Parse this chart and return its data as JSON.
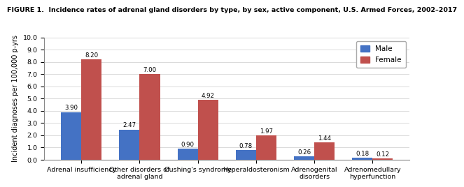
{
  "title": "FIGURE 1.  Incidence rates of adrenal gland disorders by type, by sex, active component, U.S. Armed Forces, 2002–2017",
  "categories": [
    "Adrenal insufficiency",
    "Other disorders of\nadrenal gland",
    "Cushing's syndrome",
    "Hyperaldosteronism",
    "Adrenogenital\ndisorders",
    "Adrenomedullary\nhyperfunction"
  ],
  "male_values": [
    3.9,
    2.47,
    0.9,
    0.78,
    0.26,
    0.18
  ],
  "female_values": [
    8.2,
    7.0,
    4.92,
    1.97,
    1.44,
    0.12
  ],
  "male_color": "#4472C4",
  "female_color": "#C0504D",
  "ylabel": "Incident diagnoses per 100,000 p-yrs",
  "ylim": [
    0,
    10.0
  ],
  "yticks": [
    0.0,
    1.0,
    2.0,
    3.0,
    4.0,
    5.0,
    6.0,
    7.0,
    8.0,
    9.0,
    10.0
  ],
  "legend_male": "Male",
  "legend_female": "Female",
  "bar_width": 0.35,
  "title_fontsize": 6.8,
  "axis_fontsize": 7.0,
  "tick_fontsize": 6.8,
  "label_fontsize": 6.2,
  "legend_fontsize": 7.5
}
